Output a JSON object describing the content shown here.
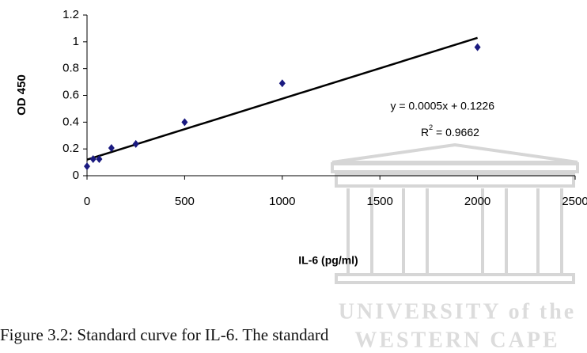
{
  "chart_data": {
    "type": "scatter",
    "x_label": "IL-6 (pg/ml)",
    "y_label": "OD 450",
    "x": [
      0,
      31.25,
      62.5,
      125,
      250,
      500,
      1000,
      2000
    ],
    "series": [
      {
        "name": "OD 450",
        "color": "#1a1a80",
        "values": [
          0.07,
          0.124,
          0.124,
          0.207,
          0.237,
          0.4,
          0.69,
          0.96
        ]
      }
    ],
    "trendline": {
      "color": "#000000",
      "x": [
        0,
        2000
      ],
      "values": [
        0.12,
        1.03
      ]
    },
    "equation": "y = 0.0005x + 0.1226",
    "r_squared": {
      "base": "R",
      "sup": "2",
      "rest": " = 0.9662"
    },
    "xlim": [
      0,
      2500
    ],
    "xticks": [
      0,
      500,
      1000,
      1500,
      2000,
      2500
    ],
    "ylim": [
      0,
      1.2
    ],
    "yticks": [
      0,
      0.2,
      0.4,
      0.6,
      0.8,
      1,
      1.2
    ],
    "grid": false
  },
  "watermark": {
    "line1": "UNIVERSITY of the",
    "line2": "WESTERN CAPE"
  },
  "caption": "Figure 3.2: Standard curve for IL-6. The standard"
}
